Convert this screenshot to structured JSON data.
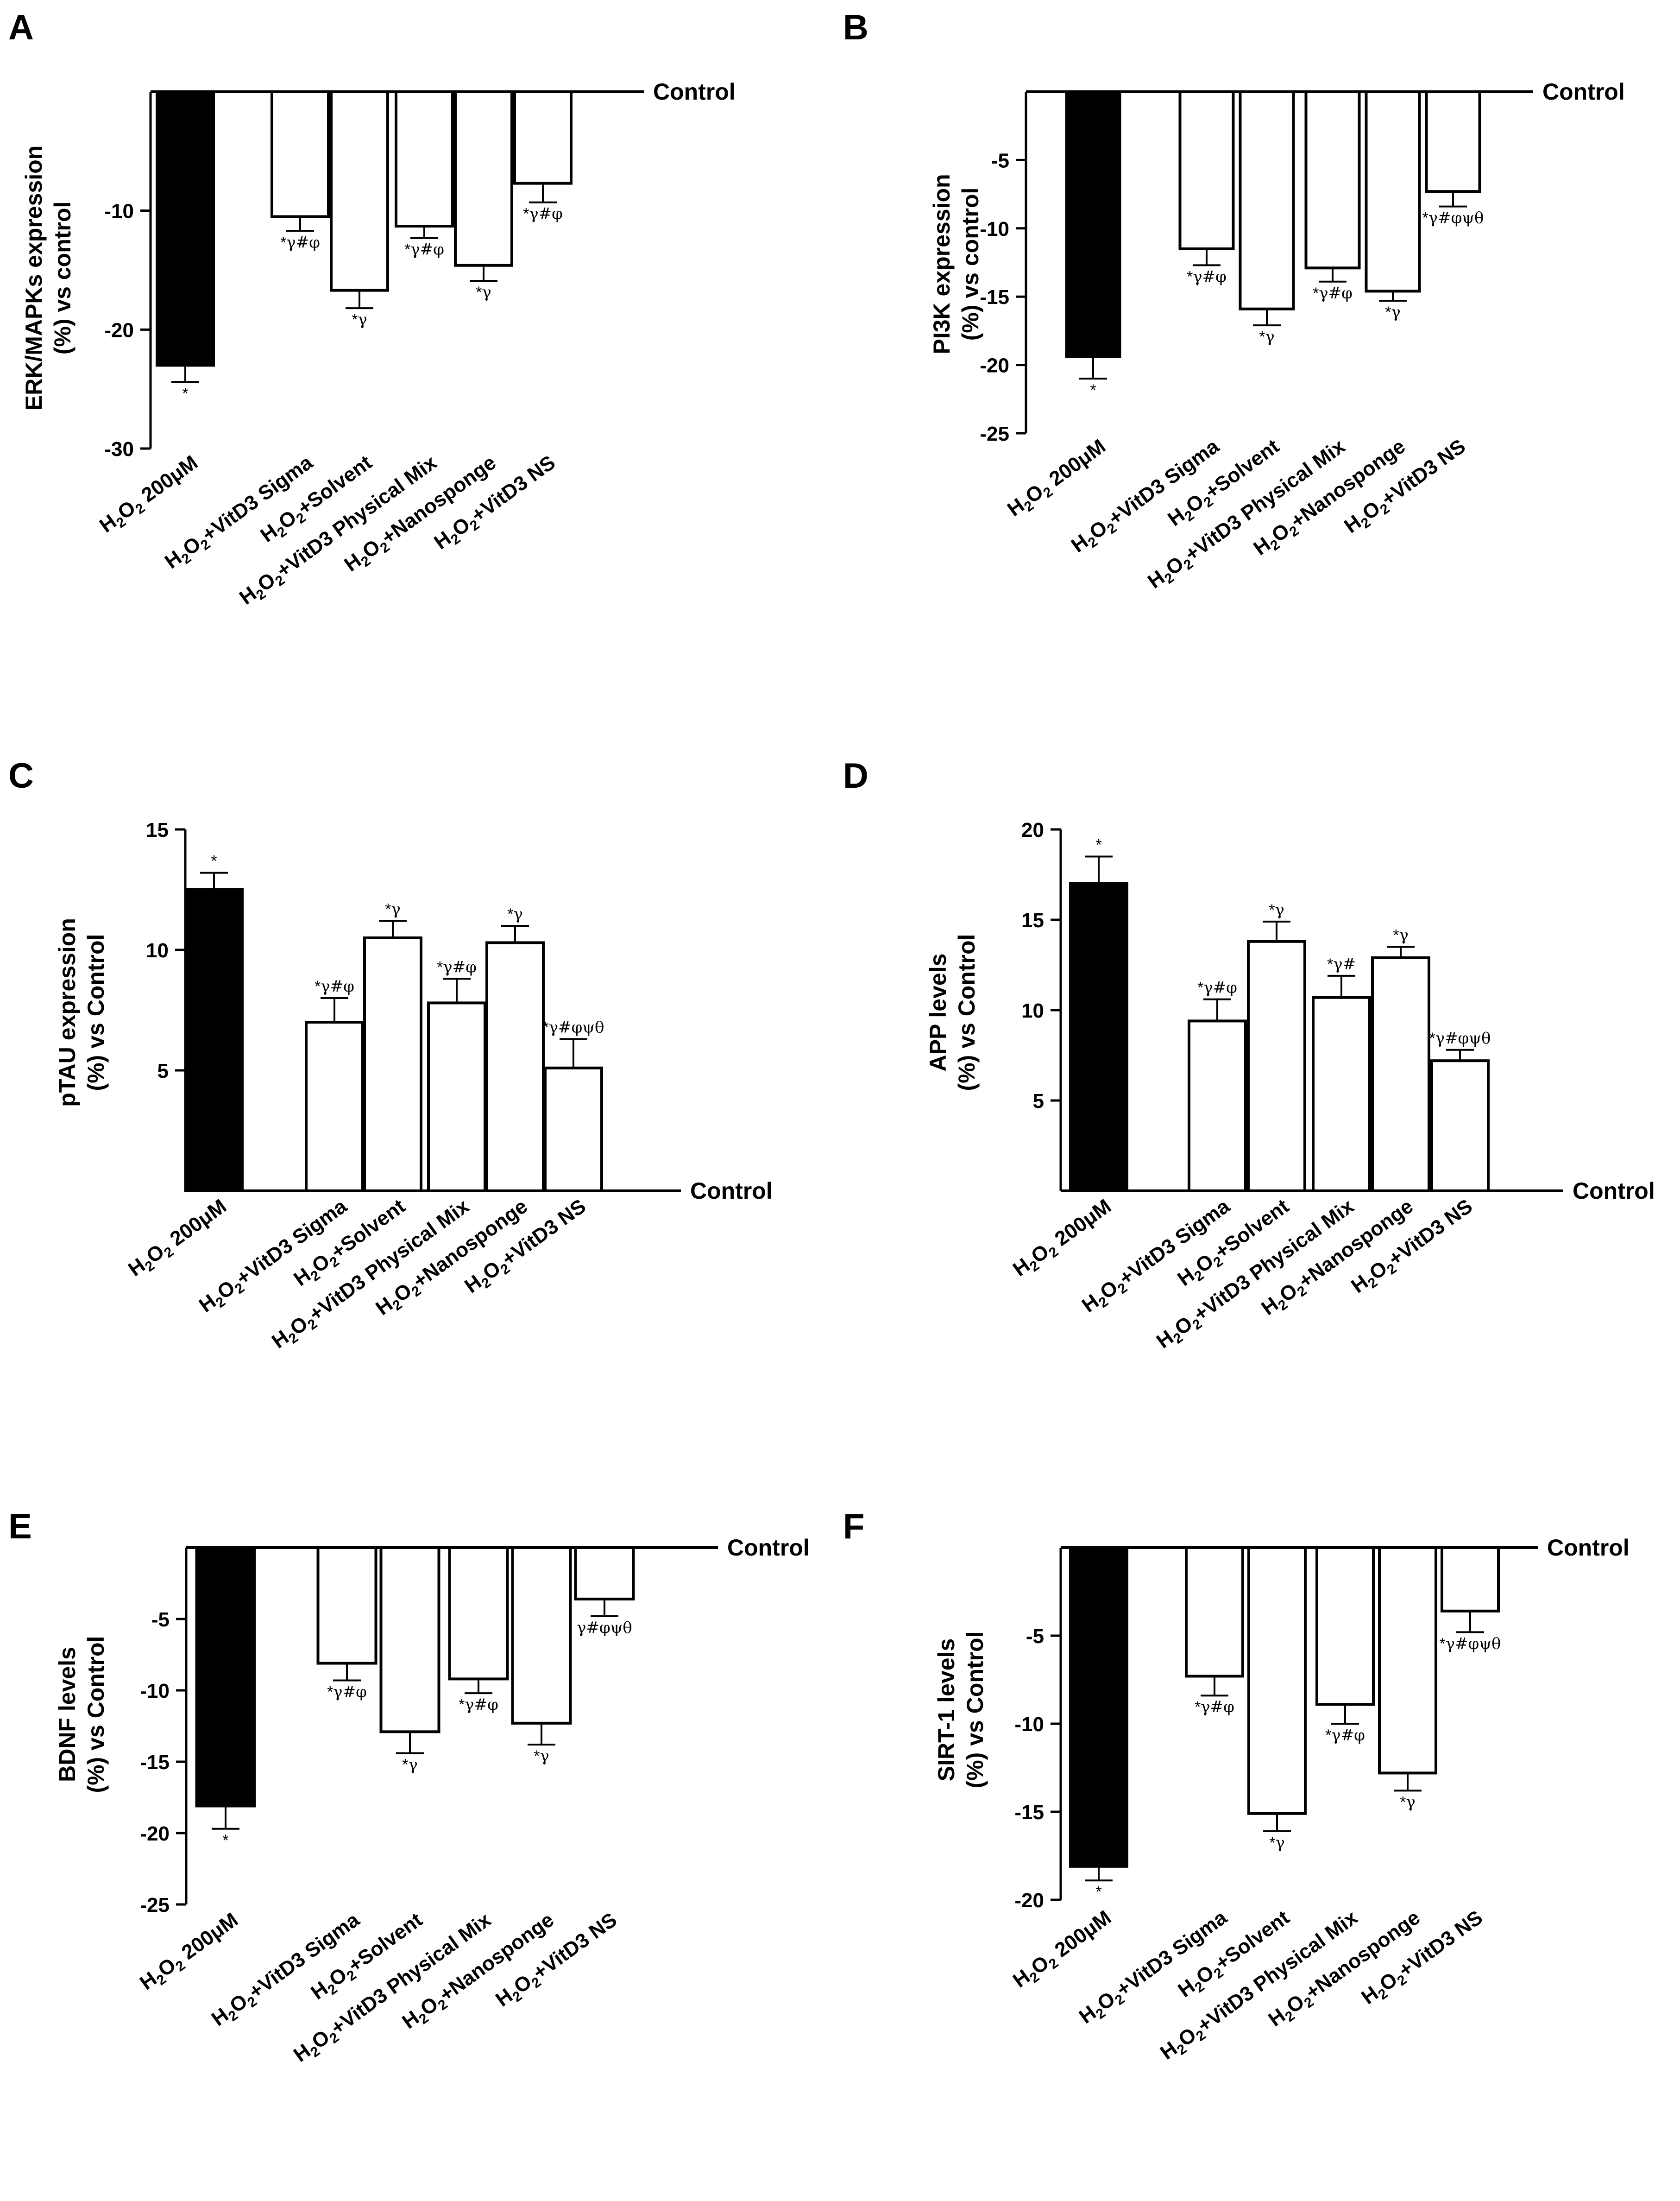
{
  "figure": {
    "categories": [
      "H2O2 200μM",
      "H2O2+VitD3 Sigma",
      "H2O2+Solvent",
      "H2O2+VitD3 Physical Mix",
      "H2O2+Nanosponge",
      "H2O2+VitD3 NS"
    ],
    "colors": {
      "solid_bar": "#000000",
      "open_bar": "#ffffff",
      "stroke": "#000000"
    }
  },
  "chart_data": [
    {
      "panel": "A",
      "type": "bar",
      "orientation": "down",
      "ylabel": [
        "ERK/MAPKs expression",
        "(%) vs control"
      ],
      "reference_label": "Control",
      "ylim": [
        -30,
        0
      ],
      "yticks": [
        -10,
        -20,
        -30
      ],
      "tick_labels": [
        "-10",
        "-20",
        "-30"
      ],
      "categories": [
        "H2O2 200μM",
        "H2O2+VitD3 Sigma",
        "H2O2+Solvent",
        "H2O2+VitD3 Physical Mix",
        "H2O2+Nanosponge",
        "H2O2+VitD3 NS"
      ],
      "values": [
        -23,
        -10.5,
        -16.7,
        -11.3,
        -14.6,
        -7.7
      ],
      "errors": [
        1.4,
        1.2,
        1.5,
        1.0,
        1.3,
        1.6
      ],
      "significance": [
        "*",
        "*γ#φ",
        "*γ",
        "*γ#φ",
        "*γ",
        "*γ#φ"
      ]
    },
    {
      "panel": "B",
      "type": "bar",
      "orientation": "down",
      "ylabel": [
        "PI3K expression",
        "(%) vs control"
      ],
      "reference_label": "Control",
      "ylim": [
        -25,
        0
      ],
      "yticks": [
        -5,
        -10,
        -15,
        -20,
        -25
      ],
      "tick_labels": [
        "-5",
        "-10",
        "-15",
        "-20",
        "-25"
      ],
      "categories": [
        "H2O2 200μM",
        "H2O2+VitD3 Sigma",
        "H2O2+Solvent",
        "H2O2+VitD3 Physical Mix",
        "H2O2+Nanosponge",
        "H2O2+VitD3 NS"
      ],
      "values": [
        -19.4,
        -11.5,
        -15.9,
        -12.9,
        -14.6,
        -7.3
      ],
      "errors": [
        1.6,
        1.2,
        1.2,
        1.0,
        0.7,
        1.1
      ],
      "significance": [
        "*",
        "*γ#φ",
        "*γ",
        "*γ#φ",
        "*γ",
        "*γ#φψθ"
      ]
    },
    {
      "panel": "C",
      "type": "bar",
      "orientation": "up",
      "ylabel": [
        "pTAU expression",
        "(%) vs Control"
      ],
      "reference_label": "Control",
      "ylim": [
        0,
        15
      ],
      "yticks": [
        5,
        10,
        15
      ],
      "tick_labels": [
        "5",
        "10",
        "15"
      ],
      "categories": [
        "H2O2 200μM",
        "H2O2+VitD3 Sigma",
        "H2O2+Solvent",
        "H2O2+VitD3 Physical Mix",
        "H2O2+Nanosponge",
        "H2O2+VitD3 NS"
      ],
      "values": [
        12.5,
        7.0,
        10.5,
        7.8,
        10.3,
        5.1
      ],
      "errors": [
        0.7,
        1.0,
        0.7,
        1.0,
        0.7,
        1.2
      ],
      "significance": [
        "*",
        "*γ#φ",
        "*γ",
        "*γ#φ",
        "*γ",
        "*γ#φψθ"
      ]
    },
    {
      "panel": "D",
      "type": "bar",
      "orientation": "up",
      "ylabel": [
        "APP levels",
        "(%) vs Control"
      ],
      "reference_label": "Control",
      "ylim": [
        0,
        20
      ],
      "yticks": [
        5,
        10,
        15,
        20
      ],
      "tick_labels": [
        "5",
        "10",
        "15",
        "20"
      ],
      "categories": [
        "H2O2 200μM",
        "H2O2+VitD3 Sigma",
        "H2O2+Solvent",
        "H2O2+VitD3 Physical Mix",
        "H2O2+Nanosponge",
        "H2O2+VitD3 NS"
      ],
      "values": [
        17.0,
        9.4,
        13.8,
        10.7,
        12.9,
        7.2
      ],
      "errors": [
        1.5,
        1.2,
        1.1,
        1.2,
        0.6,
        0.6
      ],
      "significance": [
        "*",
        "*γ#φ",
        "*γ",
        "*γ#",
        "*γ",
        "*γ#φψθ"
      ]
    },
    {
      "panel": "E",
      "type": "bar",
      "orientation": "down",
      "ylabel": [
        "BDNF levels",
        "(%) vs Control"
      ],
      "reference_label": "Control",
      "ylim": [
        -25,
        0
      ],
      "yticks": [
        -5,
        -10,
        -15,
        -20,
        -25
      ],
      "tick_labels": [
        "-5",
        "-10",
        "-15",
        "-20",
        "-25"
      ],
      "categories": [
        "H2O2 200μM",
        "H2O2+VitD3 Sigma",
        "H2O2+Solvent",
        "H2O2+VitD3 Physical Mix",
        "H2O2+Nanosponge",
        "H2O2+VitD3 NS"
      ],
      "values": [
        -18.1,
        -8.1,
        -12.9,
        -9.2,
        -12.3,
        -3.6
      ],
      "errors": [
        1.6,
        1.2,
        1.5,
        1.0,
        1.5,
        1.2
      ],
      "significance": [
        "*",
        "*γ#φ",
        "*γ",
        "*γ#φ",
        "*γ",
        "γ#φψθ"
      ]
    },
    {
      "panel": "F",
      "type": "bar",
      "orientation": "down",
      "ylabel": [
        "SIRT-1 levels",
        "(%) vs Control"
      ],
      "reference_label": "Control",
      "ylim": [
        -20,
        0
      ],
      "yticks": [
        -5,
        -10,
        -15,
        -20
      ],
      "tick_labels": [
        "-5",
        "-10",
        "-15",
        "-20"
      ],
      "categories": [
        "H2O2 200μM",
        "H2O2+VitD3 Sigma",
        "H2O2+Solvent",
        "H2O2+VitD3 Physical Mix",
        "H2O2+Nanosponge",
        "H2O2+VitD3 NS"
      ],
      "values": [
        -18.1,
        -7.3,
        -15.1,
        -8.9,
        -12.8,
        -3.6
      ],
      "errors": [
        0.8,
        1.1,
        1.0,
        1.1,
        1.0,
        1.2
      ],
      "significance": [
        "*",
        "*γ#φ",
        "*γ",
        "*γ#φ",
        "*γ",
        "*γ#φψθ"
      ]
    }
  ]
}
